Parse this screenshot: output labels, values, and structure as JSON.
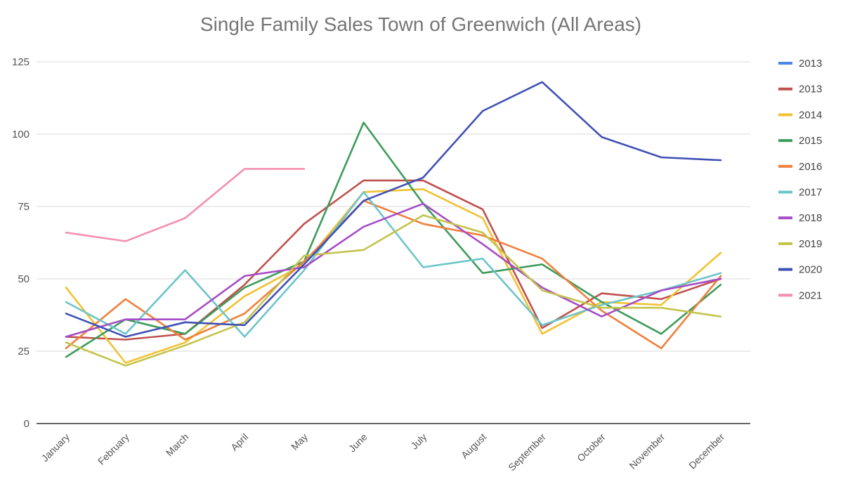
{
  "chart_data": {
    "type": "line",
    "title": "Single Family Sales Town of Greenwich (All Areas)",
    "xlabel": "",
    "ylabel": "",
    "ylim": [
      0,
      125
    ],
    "yticks": [
      0,
      25,
      50,
      75,
      100,
      125
    ],
    "grid": true,
    "legend_position": "right",
    "categories": [
      "January",
      "February",
      "March",
      "April",
      "May",
      "June",
      "July",
      "August",
      "September",
      "October",
      "November",
      "December"
    ],
    "series": [
      {
        "name": "2013",
        "color": "#4a86e8",
        "values": [
          null,
          null,
          null,
          null,
          null,
          null,
          null,
          null,
          null,
          null,
          null,
          null
        ]
      },
      {
        "name": "2013",
        "color": "#c0504d",
        "values": [
          30,
          29,
          31,
          48,
          69,
          84,
          84,
          74,
          33,
          45,
          43,
          50
        ]
      },
      {
        "name": "2014",
        "color": "#f1c232",
        "values": [
          47,
          21,
          28,
          44,
          55,
          80,
          81,
          71,
          31,
          42,
          41,
          59
        ]
      },
      {
        "name": "2015",
        "color": "#3d9c5a",
        "values": [
          23,
          36,
          31,
          47,
          56,
          104,
          76,
          52,
          55,
          42,
          31,
          48
        ]
      },
      {
        "name": "2016",
        "color": "#f07f3c",
        "values": [
          26,
          43,
          29,
          38,
          56,
          77,
          69,
          65,
          57,
          39,
          26,
          51
        ]
      },
      {
        "name": "2017",
        "color": "#6cc5c9",
        "values": [
          42,
          31,
          53,
          30,
          53,
          80,
          54,
          57,
          34,
          41,
          46,
          52
        ]
      },
      {
        "name": "2018",
        "color": "#a64dc7",
        "values": [
          30,
          36,
          36,
          51,
          54,
          68,
          76,
          62,
          47,
          37,
          46,
          50
        ]
      },
      {
        "name": "2019",
        "color": "#c5c34b",
        "values": [
          28,
          20,
          27,
          35,
          58,
          60,
          72,
          66,
          46,
          40,
          40,
          37
        ]
      },
      {
        "name": "2020",
        "color": "#3f51b5",
        "values": [
          38,
          30,
          35,
          34,
          55,
          77,
          85,
          108,
          118,
          99,
          92,
          91
        ]
      },
      {
        "name": "2021",
        "color": "#f48fb1",
        "values": [
          66,
          63,
          71,
          88,
          88,
          null,
          null,
          null,
          null,
          null,
          null,
          null
        ]
      }
    ]
  }
}
